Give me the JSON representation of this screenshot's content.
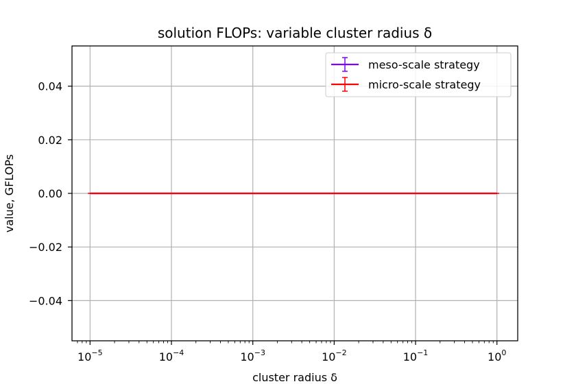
{
  "chart_data": {
    "type": "line",
    "title": "solution FLOPs: variable cluster radius δ",
    "xlabel": "cluster radius δ",
    "ylabel": "value, GFLOPs",
    "xscale": "log",
    "xlim": [
      6e-06,
      1.8
    ],
    "ylim": [
      -0.055,
      0.055
    ],
    "grid": true,
    "legend_position": "top-right",
    "x_ticks": [
      {
        "value": 1e-05,
        "base": "10",
        "exp": "−5"
      },
      {
        "value": 0.0001,
        "base": "10",
        "exp": "−4"
      },
      {
        "value": 0.001,
        "base": "10",
        "exp": "−3"
      },
      {
        "value": 0.01,
        "base": "10",
        "exp": "−2"
      },
      {
        "value": 0.1,
        "base": "10",
        "exp": "−1"
      },
      {
        "value": 1,
        "base": "10",
        "exp": "0"
      }
    ],
    "y_ticks": [
      {
        "value": 0.04,
        "label": "0.04"
      },
      {
        "value": 0.02,
        "label": "0.02"
      },
      {
        "value": 0.0,
        "label": "0.00"
      },
      {
        "value": -0.02,
        "label": "−0.02"
      },
      {
        "value": -0.04,
        "label": "−0.04"
      }
    ],
    "series": [
      {
        "name": "meso-scale strategy",
        "color": "#7f00ff",
        "x": [
          1e-05,
          0.0001,
          0.001,
          0.01,
          0.1,
          1
        ],
        "y": [
          0,
          0,
          0,
          0,
          0,
          0
        ],
        "yerr": [
          0,
          0,
          0,
          0,
          0,
          0
        ]
      },
      {
        "name": "micro-scale strategy",
        "color": "#ff0000",
        "x": [
          1e-05,
          0.0001,
          0.001,
          0.01,
          0.1,
          1
        ],
        "y": [
          0,
          0,
          0,
          0,
          0,
          0
        ],
        "yerr": [
          0,
          0,
          0,
          0,
          0,
          0
        ]
      }
    ]
  }
}
